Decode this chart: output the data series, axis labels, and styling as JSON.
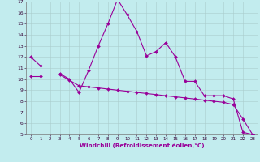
{
  "background_color": "#c2ecee",
  "grid_color": "#aacccc",
  "line_color": "#990099",
  "xlabel": "Windchill (Refroidissement éolien,°C)",
  "x": [
    0,
    1,
    2,
    3,
    4,
    5,
    6,
    7,
    8,
    9,
    10,
    11,
    12,
    13,
    14,
    15,
    16,
    17,
    18,
    19,
    20,
    21,
    22,
    23
  ],
  "series1_y": [
    12.0,
    11.2,
    null,
    10.5,
    10.0,
    8.8,
    10.8,
    13.0,
    15.0,
    17.2,
    15.8,
    14.3,
    12.1,
    12.5,
    13.3,
    12.0,
    9.8,
    9.8,
    8.5,
    8.5,
    8.5,
    8.2,
    5.2,
    5.0
  ],
  "series2_y": [
    10.3,
    10.3,
    null,
    10.4,
    9.9,
    9.4,
    9.3,
    9.2,
    9.1,
    9.0,
    8.9,
    8.8,
    8.7,
    8.6,
    8.5,
    8.4,
    8.3,
    8.2,
    8.1,
    8.0,
    7.9,
    7.7,
    6.4,
    5.0
  ],
  "ylim_min": 5,
  "ylim_max": 17,
  "xlim_min": -0.5,
  "xlim_max": 23.5,
  "tick_fontsize": 4.0,
  "xlabel_fontsize": 5.2,
  "linewidth": 0.8,
  "markersize": 2.0
}
